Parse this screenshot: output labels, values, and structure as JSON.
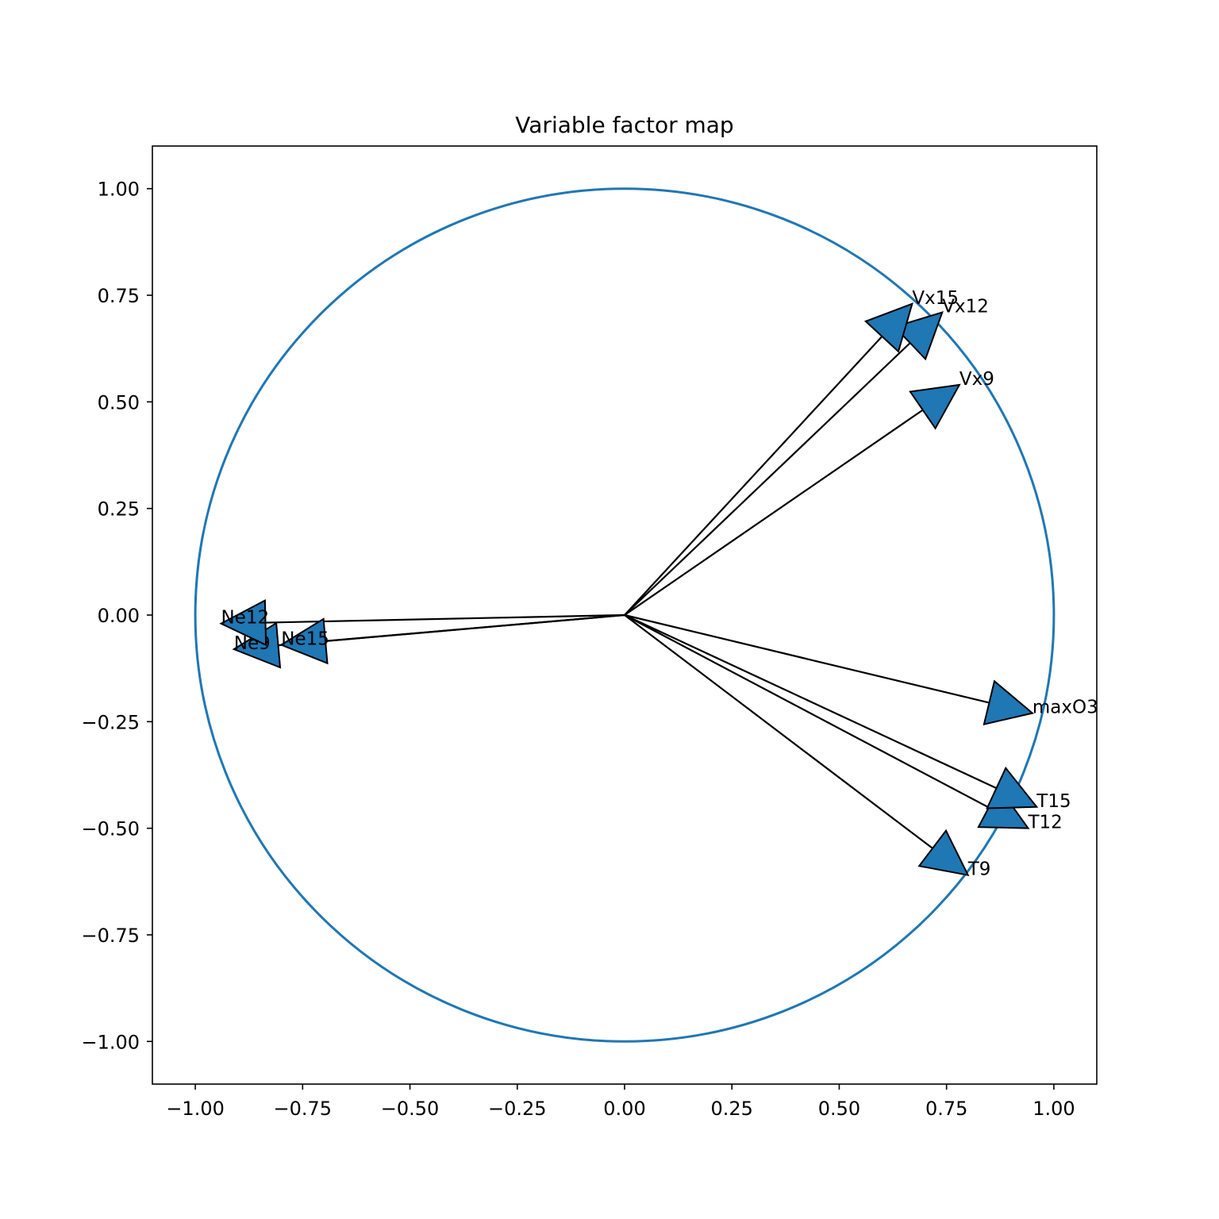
{
  "chart_data": {
    "type": "scatter",
    "title": "Variable factor map",
    "xlabel": "",
    "ylabel": "",
    "xlim": [
      -1.1,
      1.1
    ],
    "ylim": [
      -1.1,
      1.1
    ],
    "xticks": [
      -1.0,
      -0.75,
      -0.5,
      -0.25,
      0.0,
      0.25,
      0.5,
      0.75,
      1.0
    ],
    "yticks": [
      -1.0,
      -0.75,
      -0.5,
      -0.25,
      0.0,
      0.25,
      0.5,
      0.75,
      1.0
    ],
    "xtick_labels": [
      "−1.00",
      "−0.75",
      "−0.50",
      "−0.25",
      "0.00",
      "0.25",
      "0.50",
      "0.75",
      "1.00"
    ],
    "ytick_labels": [
      "−1.00",
      "−0.75",
      "−0.50",
      "−0.25",
      "0.00",
      "0.25",
      "0.50",
      "0.75",
      "1.00"
    ],
    "grid": false,
    "circle": {
      "radius": 1.0,
      "color": "#1f77b4"
    },
    "arrow_color": "#1f77b4",
    "line_color": "#000000",
    "variables": [
      {
        "name": "maxO3",
        "x": 0.95,
        "y": -0.23
      },
      {
        "name": "T9",
        "x": 0.8,
        "y": -0.61
      },
      {
        "name": "T12",
        "x": 0.94,
        "y": -0.5
      },
      {
        "name": "T15",
        "x": 0.96,
        "y": -0.45
      },
      {
        "name": "Ne9",
        "x": -0.91,
        "y": -0.08
      },
      {
        "name": "Ne12",
        "x": -0.94,
        "y": -0.02
      },
      {
        "name": "Ne15",
        "x": -0.8,
        "y": -0.07
      },
      {
        "name": "Vx9",
        "x": 0.78,
        "y": 0.54
      },
      {
        "name": "Vx12",
        "x": 0.74,
        "y": 0.71
      },
      {
        "name": "Vx15",
        "x": 0.67,
        "y": 0.73
      }
    ]
  }
}
